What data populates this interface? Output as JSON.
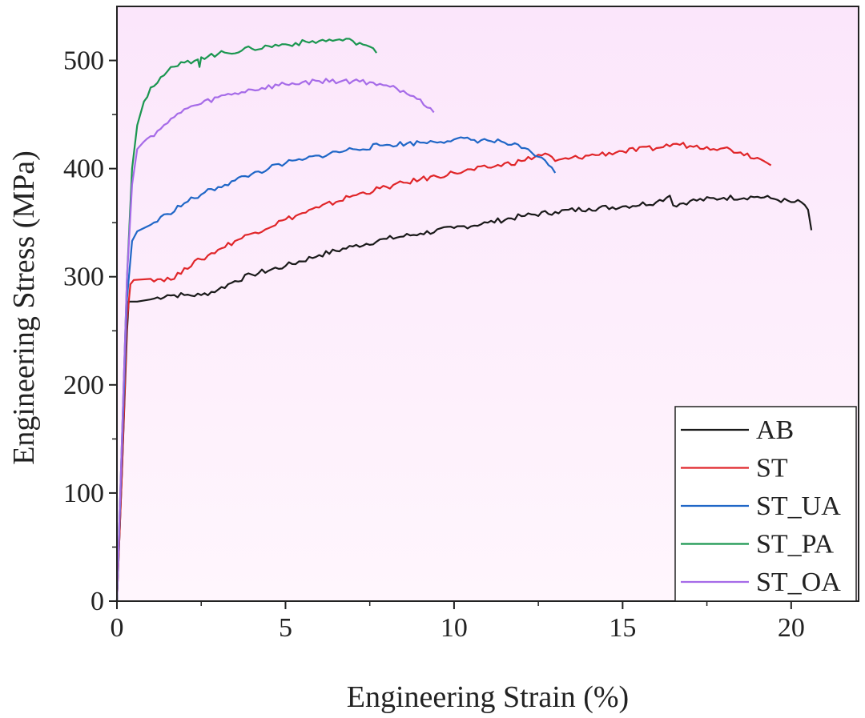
{
  "chart_data": {
    "type": "line",
    "title": "",
    "xlabel": "Engineering Strain (%)",
    "ylabel": "Engineering Stress (MPa)",
    "xlim": [
      0,
      22
    ],
    "ylim": [
      0,
      550
    ],
    "xticks": [
      0,
      5,
      10,
      15,
      20
    ],
    "yticks": [
      0,
      100,
      200,
      300,
      400,
      500
    ],
    "grid": false,
    "legend_position": "bottom-right",
    "plot_background": "#fbe6fb",
    "series": [
      {
        "name": "AB",
        "color": "#1a1a1a",
        "points": [
          [
            0,
            0
          ],
          [
            0.15,
            120
          ],
          [
            0.3,
            250
          ],
          [
            0.35,
            277
          ],
          [
            0.6,
            277
          ],
          [
            1.0,
            279
          ],
          [
            1.5,
            283
          ],
          [
            2.0,
            283
          ],
          [
            2.5,
            283
          ],
          [
            3.0,
            288
          ],
          [
            3.5,
            296
          ],
          [
            4.0,
            302
          ],
          [
            5.0,
            310
          ],
          [
            6.0,
            320
          ],
          [
            7.0,
            328
          ],
          [
            8.0,
            335
          ],
          [
            9.0,
            340
          ],
          [
            10.0,
            345
          ],
          [
            11.0,
            350
          ],
          [
            12.0,
            356
          ],
          [
            13.0,
            360
          ],
          [
            14.0,
            363
          ],
          [
            15.0,
            365
          ],
          [
            16.0,
            369
          ],
          [
            16.4,
            375
          ],
          [
            16.5,
            366
          ],
          [
            17.0,
            370
          ],
          [
            18.0,
            373
          ],
          [
            19.0,
            374
          ],
          [
            19.5,
            372
          ],
          [
            20.0,
            369
          ],
          [
            20.3,
            369
          ],
          [
            20.5,
            362
          ],
          [
            20.6,
            343
          ]
        ]
      },
      {
        "name": "ST",
        "color": "#e0262a",
        "points": [
          [
            0,
            0
          ],
          [
            0.15,
            120
          ],
          [
            0.3,
            260
          ],
          [
            0.4,
            293
          ],
          [
            0.5,
            297
          ],
          [
            1.0,
            298
          ],
          [
            1.7,
            298
          ],
          [
            2.0,
            308
          ],
          [
            2.5,
            316
          ],
          [
            3.0,
            325
          ],
          [
            3.5,
            333
          ],
          [
            4.0,
            340
          ],
          [
            5.0,
            353
          ],
          [
            6.0,
            364
          ],
          [
            7.0,
            375
          ],
          [
            8.0,
            383
          ],
          [
            9.0,
            390
          ],
          [
            10.0,
            396
          ],
          [
            11.0,
            401
          ],
          [
            12.0,
            407
          ],
          [
            12.7,
            414
          ],
          [
            13.0,
            407
          ],
          [
            14.0,
            412
          ],
          [
            15.0,
            416
          ],
          [
            16.0,
            419
          ],
          [
            16.6,
            423
          ],
          [
            17.0,
            421
          ],
          [
            17.5,
            420
          ],
          [
            18.0,
            419
          ],
          [
            18.5,
            415
          ],
          [
            19.0,
            410
          ],
          [
            19.3,
            405
          ],
          [
            19.4,
            403
          ]
        ]
      },
      {
        "name": "ST_UA",
        "color": "#2067c7",
        "points": [
          [
            0,
            0
          ],
          [
            0.15,
            140
          ],
          [
            0.3,
            280
          ],
          [
            0.45,
            333
          ],
          [
            0.6,
            342
          ],
          [
            1.0,
            348
          ],
          [
            1.5,
            358
          ],
          [
            2.0,
            368
          ],
          [
            2.5,
            376
          ],
          [
            3.0,
            383
          ],
          [
            3.5,
            389
          ],
          [
            4.0,
            395
          ],
          [
            4.5,
            400
          ],
          [
            5.0,
            405
          ],
          [
            5.5,
            408
          ],
          [
            6.0,
            412
          ],
          [
            7.0,
            418
          ],
          [
            8.0,
            422
          ],
          [
            9.0,
            424
          ],
          [
            10.0,
            427
          ],
          [
            11.0,
            426
          ],
          [
            11.5,
            424
          ],
          [
            12.0,
            419
          ],
          [
            12.5,
            411
          ],
          [
            12.9,
            401
          ],
          [
            13.0,
            396
          ]
        ]
      },
      {
        "name": "ST_PA",
        "color": "#1b9650",
        "points": [
          [
            0,
            0
          ],
          [
            0.15,
            150
          ],
          [
            0.3,
            300
          ],
          [
            0.45,
            400
          ],
          [
            0.6,
            440
          ],
          [
            0.8,
            462
          ],
          [
            1.0,
            475
          ],
          [
            1.5,
            490
          ],
          [
            2.0,
            498
          ],
          [
            2.4,
            501
          ],
          [
            2.45,
            494
          ],
          [
            2.5,
            503
          ],
          [
            3.0,
            506
          ],
          [
            4.0,
            511
          ],
          [
            5.0,
            515
          ],
          [
            6.0,
            518
          ],
          [
            6.5,
            519
          ],
          [
            7.0,
            518
          ],
          [
            7.4,
            514
          ],
          [
            7.7,
            507
          ]
        ]
      },
      {
        "name": "ST_OA",
        "color": "#a66be8",
        "points": [
          [
            0,
            0
          ],
          [
            0.15,
            150
          ],
          [
            0.3,
            300
          ],
          [
            0.45,
            385
          ],
          [
            0.6,
            418
          ],
          [
            0.8,
            425
          ],
          [
            1.0,
            430
          ],
          [
            1.5,
            442
          ],
          [
            2.0,
            455
          ],
          [
            2.5,
            460
          ],
          [
            3.0,
            466
          ],
          [
            4.0,
            473
          ],
          [
            5.0,
            478
          ],
          [
            6.0,
            481
          ],
          [
            7.0,
            481
          ],
          [
            7.5,
            480
          ],
          [
            8.0,
            477
          ],
          [
            8.5,
            472
          ],
          [
            9.0,
            464
          ],
          [
            9.3,
            456
          ],
          [
            9.4,
            452
          ]
        ]
      }
    ]
  }
}
